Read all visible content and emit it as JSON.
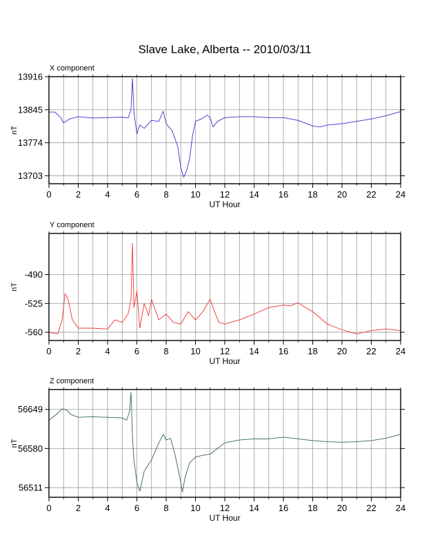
{
  "title": "Slave Lake, Alberta -- 2010/03/11",
  "chart_data": [
    {
      "type": "line",
      "panel_label": "X component",
      "xlabel": "UT Hour",
      "ylabel": "nT",
      "xlim": [
        0,
        24
      ],
      "ylim": [
        13686,
        13916
      ],
      "x_ticks": [
        0,
        2,
        4,
        6,
        8,
        10,
        12,
        14,
        16,
        18,
        20,
        22,
        24
      ],
      "y_ticks": [
        13703,
        13774,
        13845,
        13916
      ],
      "grid": true,
      "color": "#3333cc",
      "x": [
        0,
        0.4,
        0.8,
        1.0,
        1.4,
        2.0,
        3.0,
        4.0,
        5.0,
        5.4,
        5.6,
        5.7,
        5.8,
        6.0,
        6.2,
        6.5,
        7.0,
        7.5,
        7.8,
        8.0,
        8.4,
        8.8,
        9.0,
        9.2,
        9.4,
        9.6,
        9.8,
        10.0,
        10.4,
        10.8,
        11.0,
        11.2,
        11.5,
        12.0,
        13.0,
        14.0,
        15.0,
        16.0,
        17.0,
        18.0,
        18.5,
        19.0,
        20.0,
        21.0,
        22.0,
        23.0,
        24.0
      ],
      "y": [
        13840,
        13840,
        13828,
        13817,
        13825,
        13830,
        13827,
        13828,
        13829,
        13827,
        13845,
        13912,
        13840,
        13793,
        13812,
        13805,
        13822,
        13820,
        13842,
        13815,
        13800,
        13765,
        13720,
        13700,
        13715,
        13740,
        13790,
        13820,
        13825,
        13833,
        13828,
        13808,
        13820,
        13828,
        13830,
        13830,
        13828,
        13828,
        13822,
        13810,
        13808,
        13812,
        13815,
        13820,
        13825,
        13832,
        13841
      ]
    },
    {
      "type": "line",
      "panel_label": "Y component",
      "xlabel": "UT Hour",
      "ylabel": "nT",
      "xlim": [
        0,
        24
      ],
      "ylim": [
        -570,
        -440
      ],
      "x_ticks": [
        0,
        2,
        4,
        6,
        8,
        10,
        12,
        14,
        16,
        18,
        20,
        22,
        24
      ],
      "y_ticks": [
        -490,
        -525,
        -560
      ],
      "grid": true,
      "color": "#ee3333",
      "x": [
        0,
        0.3,
        0.6,
        0.9,
        1.1,
        1.3,
        1.6,
        2.0,
        3.0,
        4.0,
        4.5,
        5.0,
        5.4,
        5.6,
        5.7,
        5.8,
        6.0,
        6.2,
        6.5,
        6.8,
        7.0,
        7.5,
        8.0,
        8.5,
        9.0,
        9.5,
        10.0,
        10.5,
        11.0,
        11.3,
        11.6,
        12.0,
        13.0,
        14.0,
        15.0,
        16.0,
        16.5,
        17.0,
        17.5,
        18.0,
        19.0,
        20.0,
        21.0,
        22.0,
        23.0,
        24.0
      ],
      "y": [
        -560,
        -561,
        -562,
        -545,
        -513,
        -520,
        -545,
        -555,
        -555,
        -556,
        -545,
        -548,
        -538,
        -520,
        -452,
        -530,
        -510,
        -555,
        -525,
        -540,
        -520,
        -545,
        -538,
        -548,
        -550,
        -535,
        -545,
        -535,
        -520,
        -535,
        -548,
        -550,
        -545,
        -538,
        -530,
        -527,
        -528,
        -524,
        -530,
        -535,
        -550,
        -557,
        -562,
        -558,
        -556,
        -558
      ]
    },
    {
      "type": "line",
      "panel_label": "Z component",
      "xlabel": "UT Hour",
      "ylabel": "nT",
      "xlim": [
        0,
        24
      ],
      "ylim": [
        56494,
        56684
      ],
      "x_ticks": [
        0,
        2,
        4,
        6,
        8,
        10,
        12,
        14,
        16,
        18,
        20,
        22,
        24
      ],
      "y_ticks": [
        56649,
        56580,
        56511
      ],
      "grid": true,
      "color": "#336644",
      "x": [
        0,
        0.5,
        0.9,
        1.2,
        1.5,
        2.0,
        3.0,
        4.0,
        5.0,
        5.3,
        5.5,
        5.6,
        5.7,
        5.8,
        6.0,
        6.2,
        6.5,
        7.0,
        7.5,
        7.8,
        8.0,
        8.3,
        8.6,
        9.0,
        9.1,
        9.3,
        9.6,
        10.0,
        10.5,
        11.0,
        11.5,
        12.0,
        13.0,
        14.0,
        15.0,
        16.0,
        17.0,
        18.0,
        19.0,
        20.0,
        21.0,
        22.0,
        23.0,
        24.0
      ],
      "y": [
        56630,
        56640,
        56650,
        56648,
        56640,
        56635,
        56636,
        56635,
        56634,
        56630,
        56645,
        56679,
        56600,
        56560,
        56520,
        56505,
        56540,
        56560,
        56590,
        56605,
        56595,
        56598,
        56570,
        56520,
        56503,
        56530,
        56555,
        56565,
        56568,
        56570,
        56580,
        56590,
        56595,
        56597,
        56597,
        56600,
        56597,
        56594,
        56592,
        56591,
        56592,
        56594,
        56598,
        56605
      ]
    }
  ]
}
